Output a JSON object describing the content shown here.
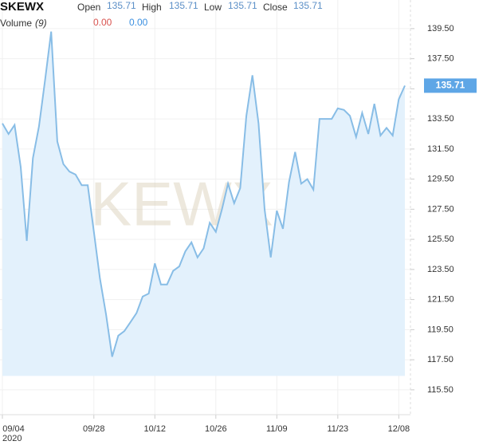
{
  "header": {
    "symbol": "SKEWX",
    "open_label": "Open",
    "open": "135.71",
    "high_label": "High",
    "high": "135.71",
    "low_label": "Low",
    "low": "135.71",
    "close_label": "Close",
    "close": "135.71",
    "volume_label": "Volume",
    "volume_period": "(9)",
    "volume_a": "0.00",
    "volume_b": "0.00"
  },
  "chart_data": {
    "type": "area",
    "watermark": "KEWX",
    "year_label": "2020",
    "color": "#88bde6",
    "fill": "#e3f1fc",
    "categories": [
      "09/04",
      null,
      null,
      null,
      null,
      null,
      null,
      null,
      null,
      null,
      null,
      null,
      null,
      null,
      null,
      "09/28",
      null,
      null,
      null,
      null,
      null,
      null,
      null,
      null,
      null,
      "10/12",
      null,
      null,
      null,
      null,
      null,
      null,
      null,
      null,
      null,
      "10/26",
      null,
      null,
      null,
      null,
      null,
      null,
      null,
      null,
      null,
      "11/09",
      null,
      null,
      null,
      null,
      null,
      null,
      null,
      null,
      null,
      "11/23",
      null,
      null,
      null,
      null,
      null,
      null,
      null,
      null,
      null,
      "12/08",
      null
    ],
    "values": [
      133.2,
      132.5,
      133.1,
      130.3,
      125.4,
      130.9,
      133.0,
      136.1,
      139.3,
      132.0,
      130.5,
      130.0,
      129.8,
      129.1,
      129.1,
      126.0,
      122.9,
      120.5,
      117.7,
      119.1,
      119.4,
      120.0,
      120.6,
      121.7,
      121.9,
      123.9,
      122.5,
      122.5,
      123.4,
      123.7,
      124.7,
      125.3,
      124.3,
      124.9,
      126.6,
      126.0,
      127.5,
      129.2,
      127.9,
      128.9,
      133.7,
      136.4,
      133.2,
      127.5,
      124.3,
      127.4,
      126.2,
      129.3,
      131.3,
      129.2,
      129.5,
      128.8,
      133.5,
      133.5,
      133.5,
      134.2,
      134.1,
      133.7,
      132.3,
      133.9,
      132.5,
      134.5,
      132.4,
      132.9,
      132.4,
      134.8,
      135.71
    ],
    "ylim": [
      113.85,
      141.4
    ],
    "yticks": [
      {
        "value": 115.5,
        "label": "115.50"
      },
      {
        "value": 117.5,
        "label": "117.50"
      },
      {
        "value": 119.5,
        "label": "119.50"
      },
      {
        "value": 121.5,
        "label": "121.50"
      },
      {
        "value": 123.5,
        "label": "123.50"
      },
      {
        "value": 125.5,
        "label": "125.50"
      },
      {
        "value": 127.5,
        "label": "127.50"
      },
      {
        "value": 129.5,
        "label": "129.50"
      },
      {
        "value": 131.5,
        "label": "131.50"
      },
      {
        "value": 133.5,
        "label": "133.50"
      },
      {
        "value": 135.5,
        "label": "135.50"
      },
      {
        "value": 137.5,
        "label": "137.50"
      },
      {
        "value": 139.5,
        "label": "139.50"
      }
    ],
    "grid": true
  }
}
